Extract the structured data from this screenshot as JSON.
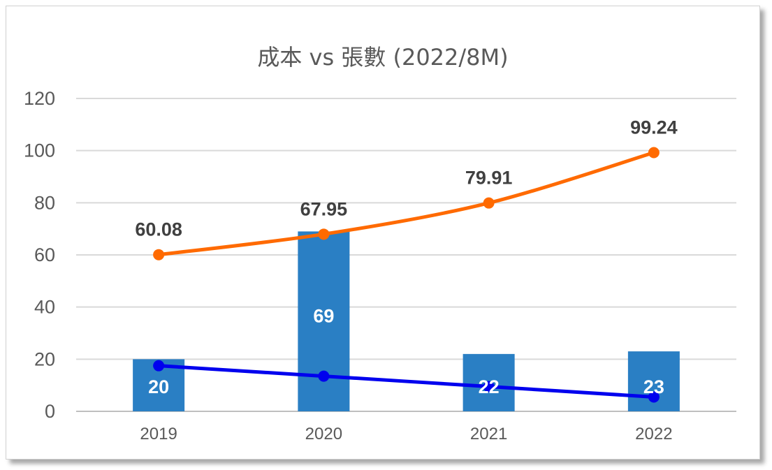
{
  "chart_data": {
    "type": "bar",
    "title": "成本 vs 張數 (2022/8M)",
    "categories": [
      "2019",
      "2020",
      "2021",
      "2022"
    ],
    "ylim": [
      0,
      120
    ],
    "yticks": [
      0,
      20,
      40,
      60,
      80,
      100,
      120
    ],
    "grid": true,
    "legend": "none",
    "bars": {
      "values": [
        20,
        69,
        22,
        23
      ],
      "labels": [
        "20",
        "69",
        "22",
        "23"
      ],
      "color": "#2a7fc4"
    },
    "lines": [
      {
        "values": [
          60.08,
          67.95,
          79.91,
          99.24
        ],
        "labels": [
          "60.08",
          "67.95",
          "79.91",
          "99.24"
        ],
        "color": "#ff6a00"
      },
      {
        "values": [
          17.5,
          13.5,
          9.5,
          5.5
        ],
        "color": "#0000ee"
      }
    ]
  }
}
